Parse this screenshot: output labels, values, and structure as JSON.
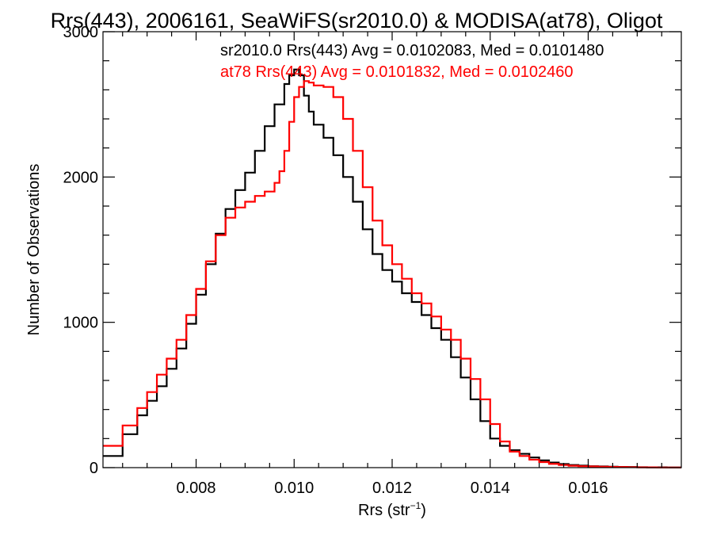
{
  "chart_data": {
    "type": "line",
    "step": true,
    "title": "Rrs(443), 2006161, SeaWiFS(sr2010.0) & MODISA(at78), Oligot",
    "xlabel_main": "Rrs (str",
    "xlabel_sup": "−1",
    "xlabel_close": ")",
    "ylabel": "Number of Observations",
    "xlim": [
      0.0061,
      0.0179
    ],
    "ylim": [
      0,
      3000
    ],
    "x_ticks": [
      {
        "value": 0.008,
        "label": "0.008"
      },
      {
        "value": 0.01,
        "label": "0.010"
      },
      {
        "value": 0.012,
        "label": "0.012"
      },
      {
        "value": 0.014,
        "label": "0.014"
      },
      {
        "value": 0.016,
        "label": "0.016"
      }
    ],
    "y_ticks": [
      {
        "value": 0,
        "label": "0"
      },
      {
        "value": 1000,
        "label": "1000"
      },
      {
        "value": 2000,
        "label": "2000"
      },
      {
        "value": 3000,
        "label": "3000"
      }
    ],
    "annotations": [
      {
        "text": "sr2010.0 Rrs(443) Avg = 0.0102083, Med = 0.0101480",
        "color": "#000000"
      },
      {
        "text": "at78 Rrs(443) Avg = 0.0101832, Med = 0.0102460",
        "color": "#ff0000"
      }
    ],
    "series": [
      {
        "color": "#000000",
        "x": [
          0.0061,
          0.0065,
          0.0068,
          0.007,
          0.0072,
          0.0074,
          0.0076,
          0.0078,
          0.008,
          0.0082,
          0.0084,
          0.0086,
          0.0088,
          0.009,
          0.0092,
          0.0094,
          0.0096,
          0.0098,
          0.0099,
          0.01,
          0.0101,
          0.0102,
          0.0103,
          0.0104,
          0.0106,
          0.0108,
          0.011,
          0.0112,
          0.0114,
          0.0116,
          0.0118,
          0.012,
          0.0122,
          0.0124,
          0.0126,
          0.0128,
          0.013,
          0.0132,
          0.0134,
          0.0136,
          0.0138,
          0.014,
          0.0142,
          0.0144,
          0.0146,
          0.0148,
          0.015,
          0.0152,
          0.0154,
          0.0156,
          0.0158,
          0.016,
          0.0162,
          0.0164,
          0.0166,
          0.0168,
          0.017,
          0.0172,
          0.0174,
          0.0176,
          0.0178
        ],
        "y": [
          80,
          230,
          360,
          460,
          560,
          680,
          820,
          990,
          1190,
          1400,
          1610,
          1780,
          1910,
          2030,
          2180,
          2350,
          2500,
          2640,
          2700,
          2740,
          2700,
          2560,
          2450,
          2360,
          2270,
          2150,
          2000,
          1830,
          1640,
          1470,
          1360,
          1280,
          1200,
          1140,
          1050,
          960,
          880,
          760,
          620,
          470,
          320,
          200,
          150,
          120,
          95,
          70,
          50,
          35,
          25,
          18,
          14,
          10,
          8,
          6,
          5,
          4,
          3,
          2,
          2,
          1,
          1
        ]
      },
      {
        "color": "#ff0000",
        "x": [
          0.0061,
          0.0065,
          0.0068,
          0.007,
          0.0072,
          0.0074,
          0.0076,
          0.0078,
          0.008,
          0.0082,
          0.0084,
          0.0086,
          0.0088,
          0.009,
          0.0092,
          0.0094,
          0.0096,
          0.0097,
          0.0098,
          0.0099,
          0.01,
          0.0101,
          0.0102,
          0.0103,
          0.0104,
          0.0106,
          0.0108,
          0.011,
          0.0112,
          0.0114,
          0.0116,
          0.0118,
          0.012,
          0.0122,
          0.0124,
          0.0126,
          0.0128,
          0.013,
          0.0132,
          0.0134,
          0.0136,
          0.0138,
          0.014,
          0.0142,
          0.0144,
          0.0146,
          0.0148,
          0.015,
          0.0152,
          0.0154,
          0.0156,
          0.0158,
          0.016,
          0.0162,
          0.0164,
          0.0166,
          0.0168,
          0.017,
          0.0172,
          0.0174,
          0.0176,
          0.0178
        ],
        "y": [
          150,
          290,
          410,
          520,
          640,
          750,
          880,
          1050,
          1230,
          1420,
          1600,
          1720,
          1790,
          1830,
          1870,
          1900,
          1960,
          2040,
          2180,
          2380,
          2550,
          2620,
          2660,
          2650,
          2630,
          2620,
          2550,
          2400,
          2180,
          1930,
          1700,
          1530,
          1400,
          1300,
          1200,
          1130,
          1040,
          950,
          880,
          750,
          610,
          470,
          300,
          180,
          110,
          80,
          55,
          38,
          26,
          18,
          13,
          10,
          8,
          6,
          5,
          4,
          3,
          2,
          2,
          1,
          1,
          1
        ]
      }
    ]
  }
}
